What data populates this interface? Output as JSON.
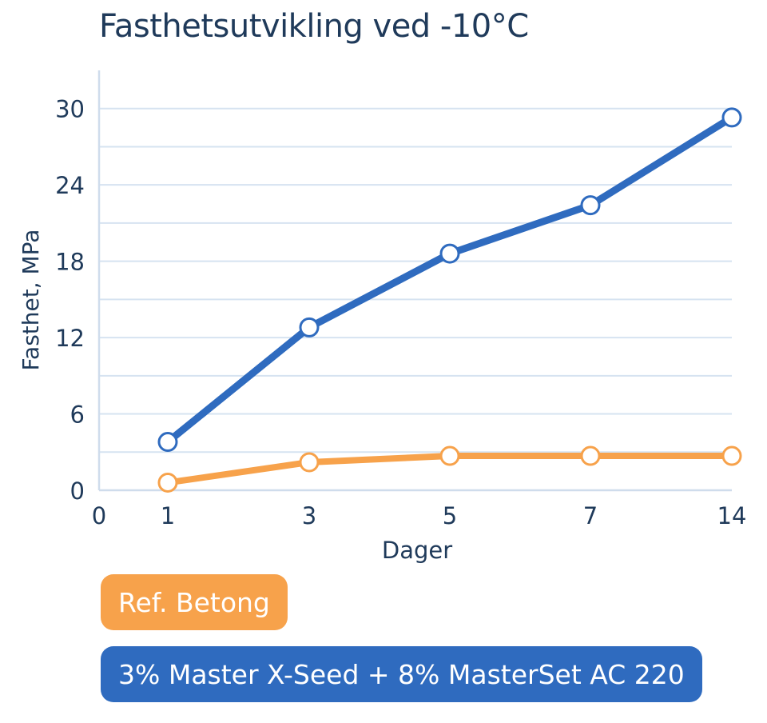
{
  "chart_data": {
    "type": "line",
    "title": "Fasthetsutvikling ved -10°C",
    "xlabel": "Dager",
    "ylabel": "Fasthet, MPa",
    "origin_label": "0",
    "categories": [
      "1",
      "3",
      "5",
      "7",
      "14"
    ],
    "yticks": [
      "0",
      "6",
      "12",
      "18",
      "24",
      "30"
    ],
    "ylim": [
      0,
      33
    ],
    "grid": true,
    "legend_position": "bottom",
    "series": [
      {
        "name": "Ref. Betong",
        "color": "#f7a24b",
        "values": [
          0.6,
          2.2,
          2.7,
          2.7,
          2.7
        ]
      },
      {
        "name": "3% Master X-Seed + 8% MasterSet AC 220",
        "color": "#2f6bbf",
        "values": [
          3.8,
          12.8,
          18.6,
          22.4,
          29.3
        ]
      }
    ]
  }
}
